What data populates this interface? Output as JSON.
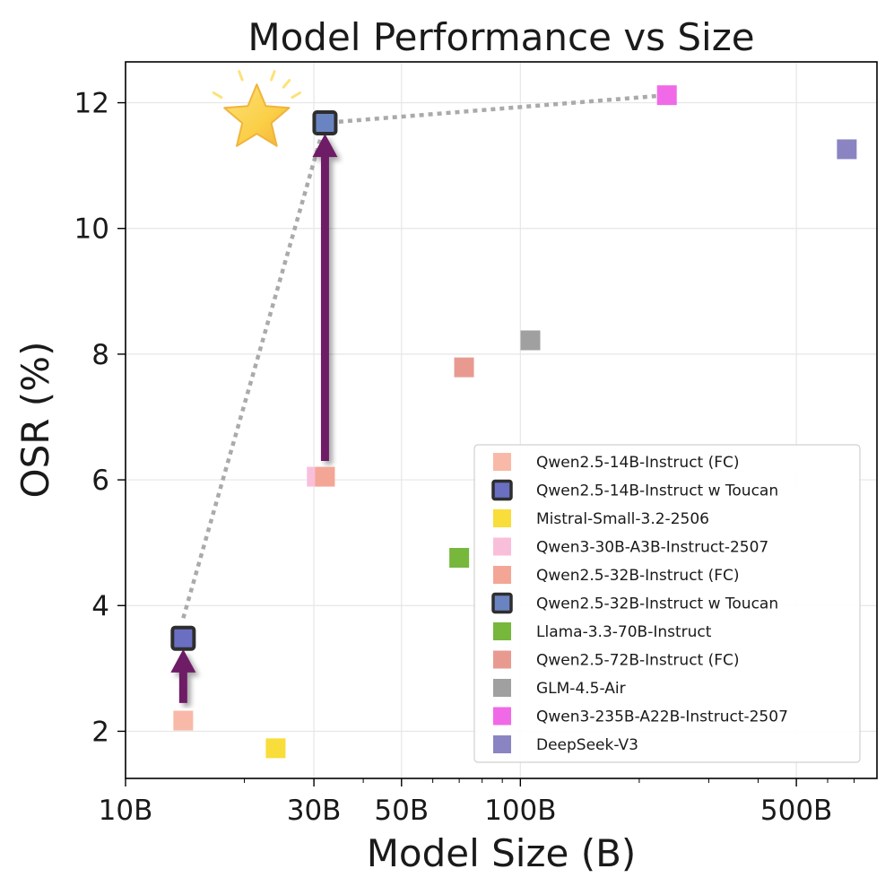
{
  "chart_data": {
    "type": "scatter",
    "title": "Model Performance vs Size",
    "xlabel": "Model Size (B)",
    "ylabel": "OSR (%)",
    "x_scale": "log",
    "xlim": [
      10,
      800
    ],
    "ylim": [
      1.25,
      12.65
    ],
    "x_ticks": [
      {
        "value": 10,
        "label": "10B"
      },
      {
        "value": 30,
        "label": "30B"
      },
      {
        "value": 50,
        "label": "50B"
      },
      {
        "value": 100,
        "label": "100B"
      },
      {
        "value": 500,
        "label": "500B"
      }
    ],
    "y_ticks": [
      {
        "value": 2,
        "label": "2"
      },
      {
        "value": 4,
        "label": "4"
      },
      {
        "value": 6,
        "label": "6"
      },
      {
        "value": 8,
        "label": "8"
      },
      {
        "value": 10,
        "label": "10"
      },
      {
        "value": 12,
        "label": "12"
      }
    ],
    "grid": true,
    "legend_position": "bottom-right",
    "series": [
      {
        "name": "Qwen2.5-14B-Instruct (FC)",
        "x": 14,
        "y": 2.17,
        "color": "#f9b9a8",
        "highlight": false
      },
      {
        "name": "Qwen2.5-14B-Instruct w Toucan",
        "x": 14,
        "y": 3.48,
        "color": "#6a6fc2",
        "highlight": true
      },
      {
        "name": "Mistral-Small-3.2-2506",
        "x": 24,
        "y": 1.73,
        "color": "#f9dd3a",
        "highlight": false
      },
      {
        "name": "Qwen3-30B-A3B-Instruct-2507",
        "x": 30.5,
        "y": 6.05,
        "color": "#f9bfda",
        "highlight": false
      },
      {
        "name": "Qwen2.5-32B-Instruct (FC)",
        "x": 32,
        "y": 6.05,
        "color": "#f4a696",
        "highlight": false
      },
      {
        "name": "Qwen2.5-32B-Instruct w Toucan",
        "x": 32,
        "y": 11.68,
        "color": "#6a84c2",
        "highlight": true
      },
      {
        "name": "Llama-3.3-70B-Instruct",
        "x": 70,
        "y": 4.76,
        "color": "#76b73c",
        "highlight": false
      },
      {
        "name": "Qwen2.5-72B-Instruct (FC)",
        "x": 72,
        "y": 7.79,
        "color": "#e89a91",
        "highlight": false
      },
      {
        "name": "GLM-4.5-Air",
        "x": 106,
        "y": 8.22,
        "color": "#a0a0a0",
        "highlight": false
      },
      {
        "name": "Qwen3-235B-A22B-Instruct-2507",
        "x": 235,
        "y": 12.12,
        "color": "#f06ae8",
        "highlight": false
      },
      {
        "name": "DeepSeek-V3",
        "x": 671,
        "y": 11.26,
        "color": "#8a84c2",
        "highlight": false
      }
    ],
    "frontier": {
      "style": "dotted",
      "color": "#aaaaaa",
      "points": [
        [
          14,
          3.8
        ],
        [
          32,
          11.68
        ],
        [
          235,
          12.12
        ]
      ]
    },
    "arrows": [
      {
        "from": [
          14,
          2.45
        ],
        "to": [
          14,
          3.25
        ],
        "color": "#6e1d66"
      },
      {
        "from": [
          32,
          6.3
        ],
        "to": [
          32,
          11.45
        ],
        "color": "#6e1d66"
      }
    ],
    "star_annotation": {
      "x": 21.5,
      "y": 11.75,
      "color": "#fbcf47"
    }
  }
}
